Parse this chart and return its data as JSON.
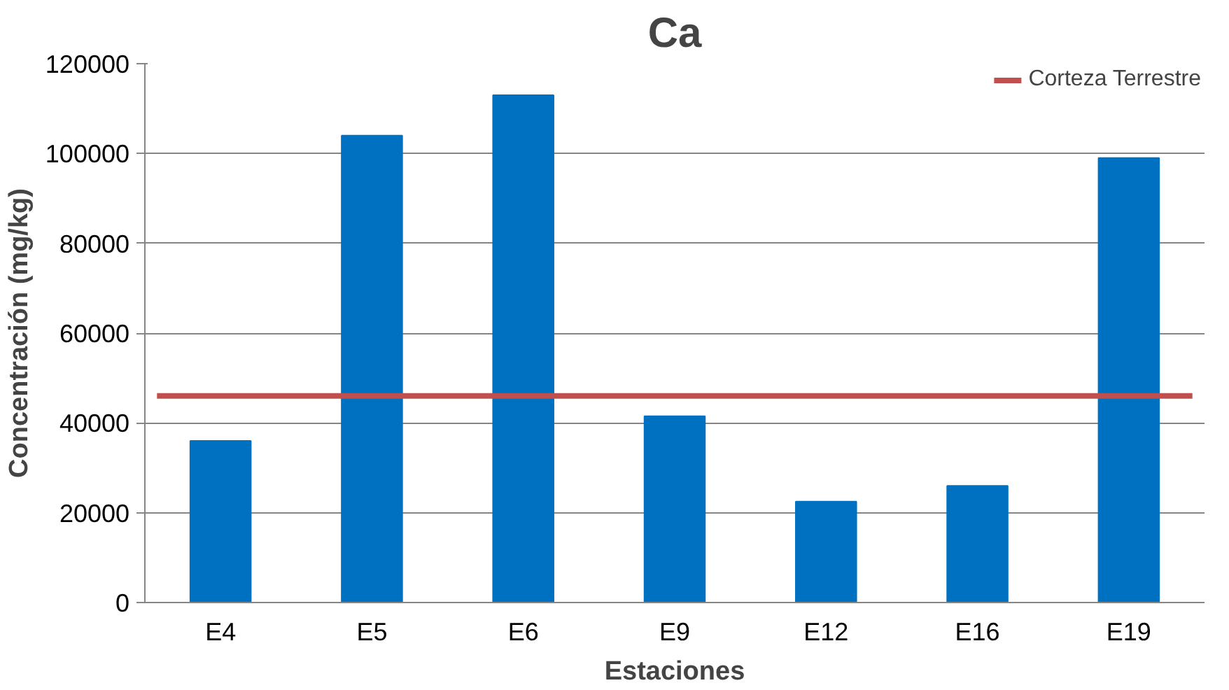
{
  "chart_data": {
    "type": "bar",
    "title": "Ca",
    "xlabel": "Estaciones",
    "ylabel": "Concentración (mg/kg)",
    "categories": [
      "E4",
      "E5",
      "E6",
      "E9",
      "E12",
      "E16",
      "E19"
    ],
    "values": [
      36000,
      104000,
      113000,
      41500,
      22500,
      26000,
      99000
    ],
    "color": "#0070c0",
    "ylim": [
      0,
      120000
    ],
    "yticks": [
      0,
      20000,
      40000,
      60000,
      80000,
      100000,
      120000
    ],
    "grid": "y",
    "legend": "top right",
    "ref_lines": [
      {
        "axis": "y",
        "value": 46000,
        "label": "Corteza Terrestre",
        "color": "#c0504d"
      }
    ]
  }
}
